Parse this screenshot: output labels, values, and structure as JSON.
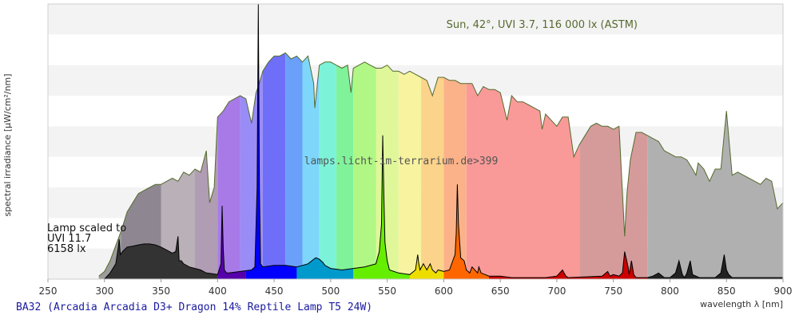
{
  "chart_data": {
    "type": "area",
    "title": "",
    "xlabel": "wavelength λ [nm]",
    "ylabel": "spectral irradiance [µW/cm²/nm]",
    "xlim": [
      250,
      900
    ],
    "ylim": [
      0,
      9
    ],
    "xticks": [
      250,
      300,
      350,
      400,
      450,
      500,
      550,
      600,
      650,
      700,
      750,
      800,
      850,
      900
    ],
    "grid": "horizontal bands",
    "annotations": {
      "sun": "Sun, 42°, UVI 3.7, 116 000 lx (ASTM)",
      "watermark": "lamps.licht-im-terrarium.de>399",
      "lamp_line1": "Lamp scaled to",
      "lamp_line2": "UVI 11.7",
      "lamp_line3": "6158 lx"
    },
    "caption": "BA32 (Arcadia Arcadia D3+ Dragon 14% Reptile Lamp T5 24W)",
    "series": [
      {
        "name": "Sun",
        "x": [
          295,
          300,
          305,
          310,
          315,
          320,
          325,
          330,
          335,
          340,
          345,
          350,
          355,
          360,
          365,
          370,
          375,
          380,
          385,
          390,
          393,
          397,
          400,
          405,
          410,
          415,
          420,
          425,
          430,
          434,
          436,
          440,
          445,
          450,
          455,
          460,
          465,
          470,
          475,
          480,
          485,
          486,
          490,
          495,
          500,
          505,
          510,
          515,
          518,
          520,
          525,
          530,
          535,
          540,
          545,
          550,
          555,
          560,
          565,
          570,
          575,
          580,
          585,
          590,
          595,
          600,
          605,
          610,
          615,
          620,
          625,
          630,
          635,
          640,
          645,
          650,
          656,
          660,
          665,
          670,
          675,
          680,
          685,
          687,
          690,
          695,
          700,
          705,
          710,
          715,
          720,
          725,
          730,
          735,
          740,
          745,
          750,
          755,
          760,
          762,
          765,
          770,
          775,
          780,
          785,
          790,
          795,
          800,
          805,
          810,
          815,
          820,
          823,
          825,
          830,
          835,
          840,
          845,
          850,
          855,
          860,
          865,
          870,
          875,
          880,
          885,
          890,
          895,
          900
        ],
        "values": [
          0.1,
          0.25,
          0.6,
          1.1,
          1.6,
          2.2,
          2.5,
          2.8,
          2.9,
          3.0,
          3.1,
          3.1,
          3.2,
          3.3,
          3.2,
          3.5,
          3.4,
          3.6,
          3.5,
          4.2,
          2.5,
          3.0,
          5.3,
          5.5,
          5.8,
          5.9,
          6.0,
          5.9,
          5.1,
          6.1,
          6.3,
          6.8,
          7.1,
          7.3,
          7.3,
          7.4,
          7.2,
          7.3,
          7.1,
          7.3,
          6.4,
          5.6,
          7.0,
          7.1,
          7.1,
          7.0,
          6.9,
          7.0,
          6.1,
          6.9,
          7.0,
          7.1,
          7.0,
          6.9,
          6.9,
          7.0,
          6.8,
          6.8,
          6.7,
          6.8,
          6.7,
          6.6,
          6.5,
          6.0,
          6.6,
          6.6,
          6.5,
          6.5,
          6.4,
          6.4,
          6.4,
          6.0,
          6.3,
          6.2,
          6.2,
          6.1,
          5.2,
          6.0,
          5.8,
          5.8,
          5.7,
          5.6,
          5.5,
          4.9,
          5.4,
          5.2,
          5.0,
          5.3,
          5.3,
          4.0,
          4.4,
          4.7,
          5.0,
          5.1,
          5.0,
          5.0,
          4.9,
          5.0,
          1.4,
          2.8,
          3.9,
          4.8,
          4.8,
          4.7,
          4.6,
          4.5,
          4.2,
          4.1,
          4.0,
          4.0,
          3.9,
          3.6,
          3.4,
          3.8,
          3.6,
          3.2,
          3.6,
          3.6,
          5.5,
          3.4,
          3.5,
          3.4,
          3.3,
          3.2,
          3.1,
          3.3,
          3.2,
          2.3,
          2.5
        ]
      },
      {
        "name": "Lamp",
        "x": [
          250,
          300,
          305,
          310,
          312,
          313,
          314,
          316,
          320,
          325,
          330,
          335,
          340,
          345,
          350,
          355,
          360,
          363,
          365,
          366,
          368,
          370,
          375,
          380,
          385,
          390,
          395,
          400,
          403,
          404,
          405,
          406,
          408,
          410,
          420,
          430,
          433,
          435,
          436,
          437,
          438,
          440,
          450,
          460,
          470,
          475,
          480,
          485,
          487,
          490,
          493,
          495,
          500,
          510,
          520,
          530,
          540,
          543,
          545,
          546,
          547,
          548,
          550,
          552,
          560,
          570,
          575,
          577,
          578,
          579,
          582,
          585,
          588,
          590,
          593,
          595,
          600,
          605,
          610,
          611,
          612,
          613,
          615,
          618,
          620,
          623,
          625,
          630,
          631,
          633,
          640,
          650,
          660,
          690,
          700,
          705,
          708,
          710,
          740,
          745,
          747,
          750,
          755,
          758,
          760,
          763,
          764,
          766,
          768,
          770,
          775,
          780,
          785,
          790,
          795,
          800,
          805,
          808,
          811,
          813,
          815,
          818,
          820,
          826,
          830,
          840,
          845,
          848,
          850,
          852,
          855,
          860,
          870,
          880,
          890,
          900
        ],
        "values": [
          0,
          0,
          0.2,
          0.5,
          1.0,
          1.3,
          0.8,
          0.9,
          1.05,
          1.08,
          1.12,
          1.15,
          1.15,
          1.12,
          1.05,
          0.95,
          0.85,
          0.9,
          1.4,
          0.6,
          0.6,
          0.5,
          0.4,
          0.35,
          0.3,
          0.2,
          0.18,
          0.15,
          0.5,
          2.4,
          1.0,
          0.3,
          0.2,
          0.2,
          0.25,
          0.3,
          0.4,
          3.0,
          9.0,
          3.0,
          0.5,
          0.4,
          0.45,
          0.45,
          0.4,
          0.45,
          0.5,
          0.65,
          0.7,
          0.65,
          0.55,
          0.45,
          0.35,
          0.3,
          0.35,
          0.4,
          0.5,
          0.9,
          1.8,
          4.7,
          2.8,
          1.2,
          0.6,
          0.3,
          0.2,
          0.15,
          0.3,
          0.8,
          0.5,
          0.3,
          0.5,
          0.3,
          0.5,
          0.3,
          0.2,
          0.3,
          0.25,
          0.3,
          0.8,
          1.5,
          3.1,
          1.8,
          0.7,
          0.6,
          0.3,
          0.2,
          0.4,
          0.2,
          0.4,
          0.2,
          0.1,
          0.1,
          0.05,
          0.05,
          0.1,
          0.3,
          0.1,
          0.05,
          0.1,
          0.25,
          0.1,
          0.15,
          0.1,
          0.2,
          0.9,
          0.4,
          0.15,
          0.6,
          0.15,
          0.05,
          0.05,
          0.05,
          0.1,
          0.2,
          0.05,
          0.05,
          0.2,
          0.6,
          0.15,
          0.05,
          0.2,
          0.6,
          0.15,
          0.05,
          0.05,
          0.05,
          0.2,
          0.8,
          0.3,
          0.15,
          0.05,
          0.05,
          0.05,
          0.05,
          0.05,
          0.05
        ]
      }
    ],
    "band_colors": [
      {
        "from": 295,
        "to": 315,
        "color": "#9c9c9c"
      },
      {
        "from": 315,
        "to": 350,
        "color": "#8e8792"
      },
      {
        "from": 350,
        "to": 380,
        "color": "#b9b0b8"
      },
      {
        "from": 380,
        "to": 400,
        "color": "#b09cb3"
      },
      {
        "from": 400,
        "to": 420,
        "color": "#a77ae8"
      },
      {
        "from": 420,
        "to": 440,
        "color": "#9a8cf6"
      },
      {
        "from": 440,
        "to": 460,
        "color": "#6e6ef8"
      },
      {
        "from": 460,
        "to": 475,
        "color": "#6aa0fa"
      },
      {
        "from": 475,
        "to": 490,
        "color": "#7ed7fb"
      },
      {
        "from": 490,
        "to": 505,
        "color": "#7cf3d9"
      },
      {
        "from": 505,
        "to": 520,
        "color": "#80f39a"
      },
      {
        "from": 520,
        "to": 540,
        "color": "#b1f786"
      },
      {
        "from": 540,
        "to": 560,
        "color": "#dff799"
      },
      {
        "from": 560,
        "to": 580,
        "color": "#f7f39f"
      },
      {
        "from": 580,
        "to": 600,
        "color": "#fbd38b"
      },
      {
        "from": 600,
        "to": 620,
        "color": "#fbb289"
      },
      {
        "from": 620,
        "to": 720,
        "color": "#fa9a98"
      },
      {
        "from": 720,
        "to": 780,
        "color": "#d59b9a"
      },
      {
        "from": 780,
        "to": 900,
        "color": "#b0b0b0"
      }
    ],
    "colors": {
      "sun_line": "#556b2f",
      "lamp_uv": "#333333",
      "lamp_violet": "#5500aa",
      "lamp_blue": "#0000ff",
      "lamp_cyan": "#0099cc",
      "lamp_green": "#66ee00",
      "lamp_yellow": "#eedd00",
      "lamp_orange": "#ff6600",
      "lamp_red": "#cc0000",
      "lamp_ir": "#222222",
      "band_light": "#f3f3f3",
      "caption": "#1a1aa0",
      "sun_label": "#556b2f"
    }
  }
}
